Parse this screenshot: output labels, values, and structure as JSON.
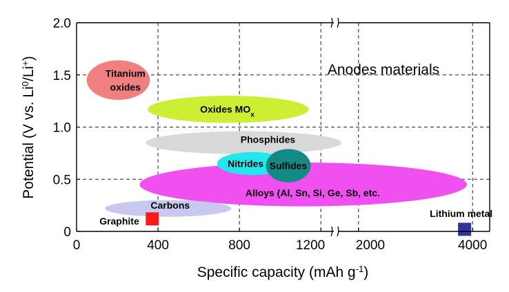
{
  "chart_data": {
    "type": "scatter",
    "title": "Anodes materials",
    "xlabel": "Specific capacity (mAh g",
    "xlabel_sup": "-1",
    "xlabel_end": ")",
    "ylabel_parts": [
      {
        "text": "Potential (V vs. Li",
        "sup": false
      },
      {
        "text": "0",
        "sup": true
      },
      {
        "text": "/Li",
        "sup": false
      },
      {
        "text": "+",
        "sup": true
      },
      {
        "text": ")",
        "sup": false
      }
    ],
    "grid": true,
    "ylim": [
      0,
      2.0
    ],
    "x_segments": [
      {
        "xlim": [
          0,
          1250
        ]
      },
      {
        "xlim": [
          1700,
          4300
        ]
      }
    ],
    "x_ticks": [
      {
        "value": 0,
        "label": "0"
      },
      {
        "value": 400,
        "label": "400"
      },
      {
        "value": 800,
        "label": "800"
      },
      {
        "value": 1200,
        "label": "1200"
      },
      {
        "value": 2000,
        "label": "2000"
      },
      {
        "value": 4000,
        "label": "4000"
      }
    ],
    "x_grid": [
      400,
      800,
      1200,
      2000,
      4000
    ],
    "y_ticks": [
      {
        "value": 0,
        "label": "0"
      },
      {
        "value": 0.5,
        "label": "0.5"
      },
      {
        "value": 1.0,
        "label": "1.0"
      },
      {
        "value": 1.5,
        "label": "1.5"
      },
      {
        "value": 2.0,
        "label": "2.0"
      }
    ],
    "regions": [
      {
        "name": "Titanium oxides",
        "lines": [
          "Titanium",
          "oxides"
        ],
        "shape": "ellipse",
        "color": "#f08080",
        "x_range": [
          50,
          360
        ],
        "y_range": [
          1.26,
          1.64
        ],
        "label_x": 240,
        "label_y": 1.45
      },
      {
        "name": "Oxides MOx",
        "lines": [
          "Oxides MO"
        ],
        "sub": "x",
        "shape": "ellipse",
        "color": "#ccee33",
        "x_range": [
          350,
          1140
        ],
        "y_range": [
          1.04,
          1.3
        ],
        "label_x": 740,
        "label_y": 1.17
      },
      {
        "name": "Phosphides",
        "lines": [
          "Phosphides"
        ],
        "shape": "ellipse",
        "color": "#d9d9d9",
        "x_range": [
          340,
          1700
        ],
        "y_range": [
          0.74,
          0.96
        ],
        "label_x": 940,
        "label_y": 0.88
      },
      {
        "name": "Alloys",
        "lines": [
          "Alloys (Al, Sn, Si, Ge, Sb, etc."
        ],
        "shape": "ellipse",
        "color": "#f050f0",
        "x_range": [
          310,
          3900
        ],
        "y_range": [
          0.24,
          0.66
        ],
        "label_x": 1160,
        "label_y": 0.37
      },
      {
        "name": "Nitrides",
        "lines": [
          "Nitrides"
        ],
        "shape": "ellipse",
        "color": "#22e8ee",
        "x_range": [
          690,
          1040
        ],
        "y_range": [
          0.54,
          0.76
        ],
        "label_x": 830,
        "label_y": 0.65
      },
      {
        "name": "Sulfides",
        "lines": [
          "Sulfides"
        ],
        "shape": "ellipse",
        "color": "#138a86",
        "x_range": [
          930,
          1150
        ],
        "y_range": [
          0.47,
          0.79
        ],
        "label_x": 1040,
        "label_y": 0.63
      },
      {
        "name": "Carbons",
        "lines": [
          "Carbons"
        ],
        "shape": "ellipse",
        "color": "#c8c8f0",
        "x_range": [
          140,
          760
        ],
        "y_range": [
          0.14,
          0.3
        ],
        "label_x": 460,
        "label_y": 0.25
      },
      {
        "name": "Graphite",
        "lines": [
          "Graphite"
        ],
        "shape": "square",
        "color": "#ff1a1a",
        "x": 372,
        "y": 0.12,
        "label_x": 210,
        "label_y": 0.1
      },
      {
        "name": "Lithium metal",
        "lines": [
          "Lithium metal"
        ],
        "shape": "square",
        "color": "#333399",
        "x": 3860,
        "y": 0.02,
        "label_x": 3800,
        "label_y": 0.17
      }
    ]
  }
}
